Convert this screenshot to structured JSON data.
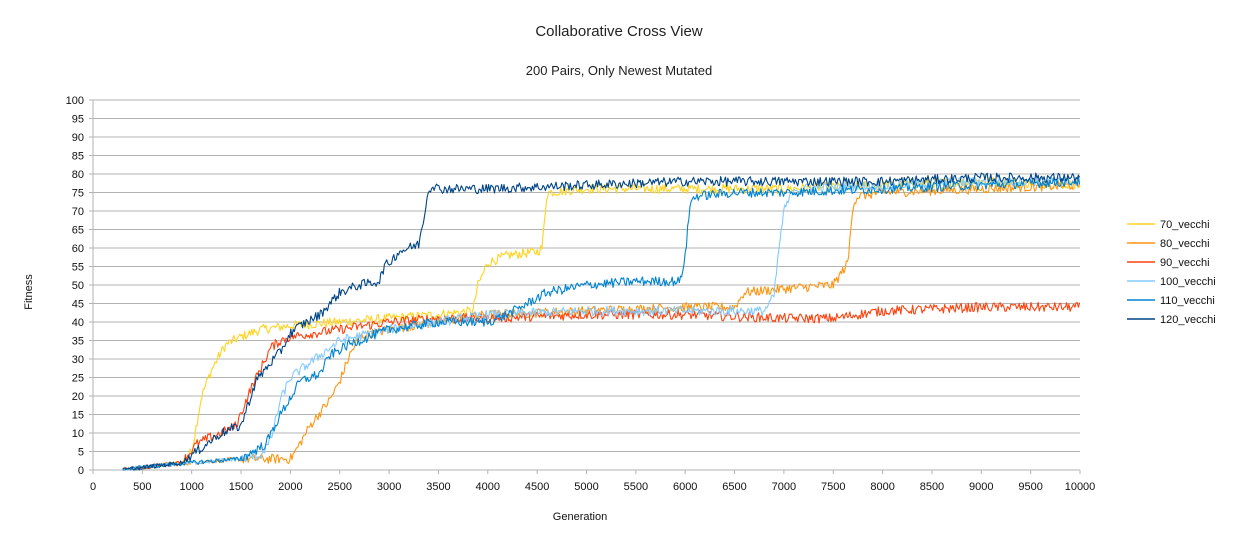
{
  "chart_data": {
    "type": "line",
    "title": "Collaborative Cross View",
    "subtitle": "200 Pairs, Only Newest Mutated",
    "xlabel": "Generation",
    "ylabel": "Fitness",
    "xlim": [
      0,
      10000
    ],
    "ylim": [
      0,
      100
    ],
    "x_ticks": [
      0,
      500,
      1000,
      1500,
      2000,
      2500,
      3000,
      3500,
      4000,
      4500,
      5000,
      5500,
      6000,
      6500,
      7000,
      7500,
      8000,
      8500,
      9000,
      9500,
      10000
    ],
    "y_ticks": [
      0,
      5,
      10,
      15,
      20,
      25,
      30,
      35,
      40,
      45,
      50,
      55,
      60,
      65,
      70,
      75,
      80,
      85,
      90,
      95,
      100
    ],
    "grid": "horizontal",
    "legend_position": "right",
    "series": [
      {
        "name": "70_vecchi",
        "color": "#ffd320",
        "x": [
          300,
          600,
          900,
          1000,
          1100,
          1200,
          1300,
          1350,
          1500,
          1700,
          2000,
          2500,
          3000,
          3500,
          3850,
          3900,
          4000,
          4200,
          4500,
          4550,
          4600,
          5000,
          6000,
          7000,
          8000,
          9000,
          10000
        ],
        "y": [
          0,
          1,
          2,
          5,
          20,
          27,
          32,
          34,
          36,
          38,
          39,
          40,
          41,
          42,
          43,
          50,
          56,
          58,
          59,
          60,
          75,
          76,
          76,
          76,
          77,
          78,
          77
        ]
      },
      {
        "name": "80_vecchi",
        "color": "#ff950e",
        "x": [
          300,
          600,
          1000,
          1500,
          2000,
          2050,
          2200,
          2400,
          2500,
          2600,
          2700,
          3000,
          3500,
          4000,
          5000,
          6000,
          6500,
          6600,
          7000,
          7500,
          7650,
          7700,
          7750,
          8000,
          9000,
          10000
        ],
        "y": [
          0,
          1,
          2,
          3,
          3,
          5,
          12,
          19,
          24,
          31,
          36,
          38,
          40,
          42,
          43,
          44,
          44,
          48,
          49,
          50,
          56,
          72,
          74,
          75,
          76,
          77
        ]
      },
      {
        "name": "90_vecchi",
        "color": "#ff420e",
        "x": [
          300,
          600,
          900,
          1050,
          1200,
          1300,
          1450,
          1600,
          1800,
          1900,
          2000,
          2500,
          3000,
          3500,
          4000,
          5000,
          6000,
          7000,
          7500,
          8000,
          9000,
          10000
        ],
        "y": [
          0,
          1,
          2,
          7,
          9,
          10,
          12,
          22,
          33,
          35,
          36,
          38,
          40,
          41,
          41,
          42,
          42,
          41,
          41,
          43,
          44,
          44
        ]
      },
      {
        "name": "100_vecchi",
        "color": "#83caff",
        "x": [
          300,
          600,
          1000,
          1500,
          1700,
          1800,
          1900,
          2000,
          2300,
          2500,
          3000,
          3500,
          4000,
          5000,
          6000,
          6500,
          6800,
          6900,
          6950,
          7000,
          7100,
          8000,
          9000,
          10000
        ],
        "y": [
          0,
          1,
          2,
          3,
          4,
          8,
          19,
          25,
          31,
          35,
          38,
          40,
          42,
          43,
          43,
          43,
          43,
          47,
          60,
          70,
          76,
          77,
          78,
          78
        ]
      },
      {
        "name": "110_vecchi",
        "color": "#0084d1",
        "x": [
          300,
          600,
          1000,
          1500,
          1750,
          1900,
          2100,
          2300,
          2400,
          2600,
          3000,
          3500,
          4000,
          4200,
          4400,
          4600,
          5000,
          5500,
          5950,
          6000,
          6050,
          6100,
          6500,
          7000,
          8000,
          9000,
          10000
        ],
        "y": [
          0,
          1,
          2,
          3,
          7,
          15,
          24,
          26,
          31,
          34,
          38,
          40,
          40,
          42,
          45,
          48,
          50,
          51,
          51,
          58,
          72,
          74,
          75,
          75,
          76,
          77,
          78
        ]
      },
      {
        "name": "120_vecchi",
        "color": "#004586",
        "x": [
          300,
          600,
          900,
          1300,
          1500,
          1650,
          1800,
          1900,
          2000,
          2100,
          2300,
          2500,
          2700,
          2900,
          2950,
          3000,
          3100,
          3300,
          3350,
          3400,
          3450,
          3500,
          4000,
          5000,
          6000,
          7000,
          8000,
          9000,
          10000
        ],
        "y": [
          0,
          1,
          2,
          10,
          12,
          24,
          29,
          32,
          37,
          39,
          42,
          48,
          50,
          51,
          55,
          56,
          59,
          61,
          68,
          76,
          77,
          76,
          76,
          77,
          78,
          78,
          78,
          79,
          79
        ]
      }
    ]
  }
}
